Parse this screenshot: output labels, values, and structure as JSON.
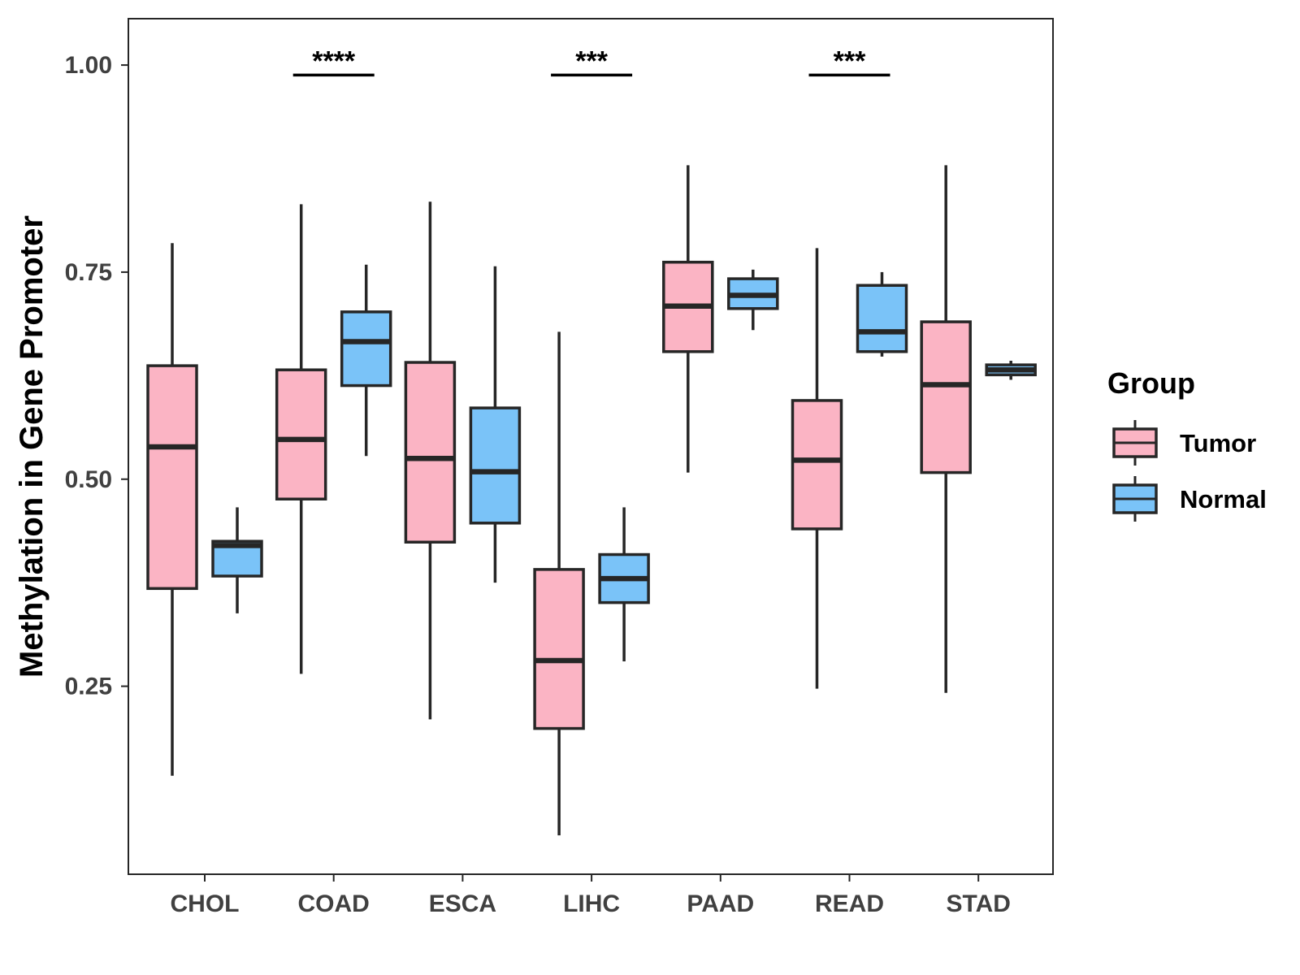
{
  "chart_data": {
    "type": "boxplot",
    "title": "",
    "xlabel": "",
    "ylabel": "Methylation in Gene Promoter",
    "ylim": [
      0.023,
      1.056
    ],
    "yticks": [
      0.25,
      0.5,
      0.75,
      1.0
    ],
    "ytick_labels": [
      "0.25",
      "0.50",
      "0.75",
      "1.00"
    ],
    "categories": [
      "CHOL",
      "COAD",
      "ESCA",
      "LIHC",
      "PAAD",
      "READ",
      "STAD"
    ],
    "legend": {
      "title": "Group",
      "position": "right",
      "entries": [
        {
          "name": "Tumor",
          "color": "#FBB4C4"
        },
        {
          "name": "Normal",
          "color": "#7AC3F8"
        }
      ]
    },
    "series": [
      {
        "name": "Tumor",
        "color": "#FBB4C4",
        "boxes": [
          {
            "category": "CHOL",
            "whisker_low": 0.142,
            "q1": 0.368,
            "median": 0.539,
            "q3": 0.637,
            "whisker_high": 0.785
          },
          {
            "category": "COAD",
            "whisker_low": 0.265,
            "q1": 0.476,
            "median": 0.548,
            "q3": 0.632,
            "whisker_high": 0.832
          },
          {
            "category": "ESCA",
            "whisker_low": 0.21,
            "q1": 0.424,
            "median": 0.525,
            "q3": 0.641,
            "whisker_high": 0.835
          },
          {
            "category": "LIHC",
            "whisker_low": 0.07,
            "q1": 0.199,
            "median": 0.281,
            "q3": 0.391,
            "whisker_high": 0.678
          },
          {
            "category": "PAAD",
            "whisker_low": 0.508,
            "q1": 0.654,
            "median": 0.709,
            "q3": 0.762,
            "whisker_high": 0.879
          },
          {
            "category": "READ",
            "whisker_low": 0.247,
            "q1": 0.44,
            "median": 0.523,
            "q3": 0.595,
            "whisker_high": 0.779
          },
          {
            "category": "STAD",
            "whisker_low": 0.242,
            "q1": 0.508,
            "median": 0.614,
            "q3": 0.69,
            "whisker_high": 0.879
          }
        ]
      },
      {
        "name": "Normal",
        "color": "#7AC3F8",
        "boxes": [
          {
            "category": "CHOL",
            "whisker_low": 0.338,
            "q1": 0.383,
            "median": 0.42,
            "q3": 0.425,
            "whisker_high": 0.466
          },
          {
            "category": "COAD",
            "whisker_low": 0.528,
            "q1": 0.613,
            "median": 0.666,
            "q3": 0.702,
            "whisker_high": 0.759
          },
          {
            "category": "ESCA",
            "whisker_low": 0.375,
            "q1": 0.447,
            "median": 0.509,
            "q3": 0.586,
            "whisker_high": 0.757
          },
          {
            "category": "LIHC",
            "whisker_low": 0.28,
            "q1": 0.351,
            "median": 0.38,
            "q3": 0.409,
            "whisker_high": 0.466
          },
          {
            "category": "PAAD",
            "whisker_low": 0.68,
            "q1": 0.706,
            "median": 0.722,
            "q3": 0.742,
            "whisker_high": 0.753
          },
          {
            "category": "READ",
            "whisker_low": 0.648,
            "q1": 0.654,
            "median": 0.678,
            "q3": 0.734,
            "whisker_high": 0.75
          },
          {
            "category": "STAD",
            "whisker_low": 0.62,
            "q1": 0.626,
            "median": 0.632,
            "q3": 0.638,
            "whisker_high": 0.643
          }
        ]
      }
    ],
    "annotations": [
      {
        "category": "COAD",
        "label": "****",
        "y": 0.988
      },
      {
        "category": "LIHC",
        "label": "***",
        "y": 0.988
      },
      {
        "category": "READ",
        "label": "***",
        "y": 0.988
      }
    ],
    "grid": false
  },
  "colors": {
    "tumor": "#FBB4C4",
    "normal": "#7AC3F8",
    "outline": "#262626",
    "axis_text": "#404040"
  }
}
